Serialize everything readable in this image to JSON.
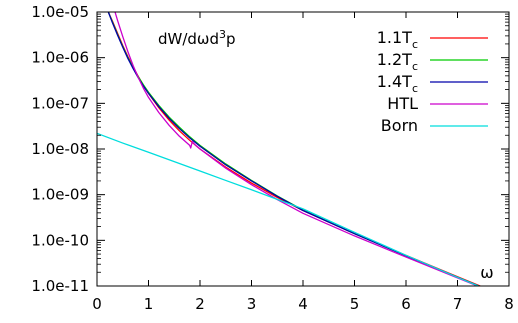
{
  "chart_data": {
    "type": "line",
    "title": "dW/dωd³p",
    "xlabel": "ω",
    "ylabel": "",
    "xlim": [
      0,
      8
    ],
    "ylim": [
      1e-11,
      1e-05
    ],
    "y_scale": "log",
    "grid": false,
    "legend_position": "top-right",
    "x_ticks": [
      0,
      1,
      2,
      3,
      4,
      5,
      6,
      7,
      8
    ],
    "x_tick_labels": [
      "0",
      "1",
      "2",
      "3",
      "4",
      "5",
      "6",
      "7",
      "8"
    ],
    "y_ticks": [
      1e-11,
      1e-10,
      1e-09,
      1e-08,
      1e-07,
      1e-06,
      1e-05
    ],
    "y_tick_labels": [
      "1.0e-11",
      "1.0e-10",
      "1.0e-09",
      "1.0e-08",
      "1.0e-07",
      "1.0e-06",
      "1.0e-05"
    ],
    "series": [
      {
        "name": "1.1T",
        "name_sub": "c",
        "color": "#ff0000",
        "x": [
          0.22,
          0.3,
          0.4,
          0.5,
          0.6,
          0.7,
          0.8,
          0.9,
          1.0,
          1.2,
          1.4,
          1.6,
          1.8,
          2.0,
          2.5,
          3.0,
          3.5,
          4.0,
          5.0,
          6.0,
          7.0,
          8.0
        ],
        "y": [
          1e-05,
          6.3e-06,
          3.4e-06,
          1.85e-06,
          1.05e-06,
          6.3e-07,
          3.9e-07,
          2.5e-07,
          1.65e-07,
          8e-08,
          4.3e-08,
          2.5e-08,
          1.55e-08,
          1e-08,
          4e-09,
          1.8e-09,
          8.7e-10,
          4.5e-10,
          1.4e-10,
          4.7e-11,
          1.6e-11,
          5.5e-12
        ]
      },
      {
        "name": "1.2T",
        "name_sub": "c",
        "color": "#00cc00",
        "x": [
          0.22,
          0.3,
          0.4,
          0.5,
          0.6,
          0.7,
          0.8,
          0.9,
          1.0,
          1.2,
          1.4,
          1.6,
          1.8,
          2.0,
          2.5,
          3.0,
          3.5,
          4.0,
          5.0,
          6.0,
          7.0,
          8.0
        ],
        "y": [
          1e-05,
          6e-06,
          3.2e-06,
          1.75e-06,
          1e-06,
          6.1e-07,
          3.85e-07,
          2.55e-07,
          1.75e-07,
          9e-08,
          5e-08,
          3e-08,
          1.85e-08,
          1.2e-08,
          4.7e-09,
          2.05e-09,
          9.4e-10,
          4.6e-10,
          1.4e-10,
          4.6e-11,
          1.55e-11,
          5.3e-12
        ]
      },
      {
        "name": "1.4T",
        "name_sub": "c",
        "color": "#0000aa",
        "x": [
          0.22,
          0.3,
          0.4,
          0.5,
          0.6,
          0.7,
          0.8,
          0.9,
          1.0,
          1.2,
          1.4,
          1.6,
          1.8,
          2.0,
          2.5,
          3.0,
          3.5,
          4.0,
          5.0,
          6.0,
          7.0,
          8.0
        ],
        "y": [
          1e-05,
          5.8e-06,
          3.1e-06,
          1.7e-06,
          9.6e-07,
          5.8e-07,
          3.65e-07,
          2.4e-07,
          1.65e-07,
          8.5e-08,
          4.7e-08,
          2.8e-08,
          1.75e-08,
          1.15e-08,
          4.5e-09,
          2e-09,
          9.2e-10,
          4.5e-10,
          1.4e-10,
          4.6e-11,
          1.55e-11,
          5.3e-12
        ]
      },
      {
        "name": "HTL",
        "color": "#cc00cc",
        "x": [
          0.35,
          0.4,
          0.5,
          0.6,
          0.7,
          0.8,
          0.9,
          1.0,
          1.2,
          1.4,
          1.6,
          1.8,
          1.82,
          1.85,
          1.9,
          2.0,
          2.5,
          3.0,
          3.5,
          4.0,
          5.0,
          6.0,
          7.0,
          8.0
        ],
        "y": [
          1e-05,
          6.5e-06,
          2.9e-06,
          1.35e-06,
          6.8e-07,
          3.7e-07,
          2.15e-07,
          1.35e-07,
          6.3e-08,
          3.3e-08,
          1.9e-08,
          1.2e-08,
          1.05e-08,
          1.45e-08,
          1.25e-08,
          1e-08,
          3.8e-09,
          1.65e-09,
          7.8e-10,
          3.9e-10,
          1.25e-10,
          4.3e-11,
          1.5e-11,
          5.3e-12
        ]
      },
      {
        "name": "Born",
        "color": "#00dddd",
        "x": [
          0.0,
          0.5,
          1.0,
          1.5,
          2.0,
          2.5,
          3.0,
          3.5,
          4.0,
          5.0,
          6.0,
          7.0,
          8.0
        ],
        "y": [
          2.2e-08,
          1.35e-08,
          8.5e-09,
          5.3e-09,
          3.3e-09,
          2.05e-09,
          1.28e-09,
          7.9e-10,
          4.9e-10,
          1.5e-10,
          4.7e-11,
          1.55e-11,
          5.3e-12
        ]
      }
    ]
  }
}
